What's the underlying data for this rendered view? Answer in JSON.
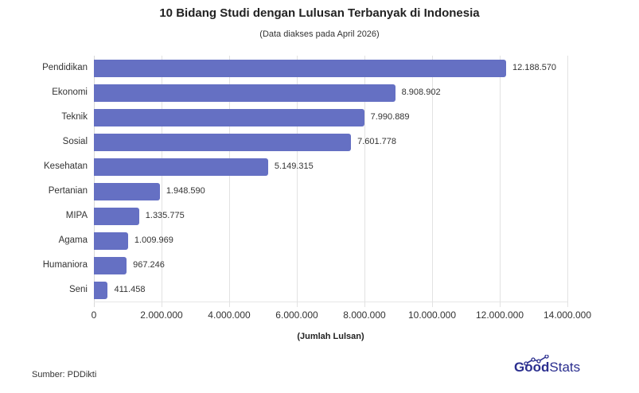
{
  "header": {
    "title": "10 Bidang Studi dengan Lulusan Terbanyak di Indonesia",
    "subtitle": "(Data diakses pada April 2026)"
  },
  "footer": {
    "source": "Sumber: PDDikti",
    "logo_bold": "Good",
    "logo_light": "Stats"
  },
  "colors": {
    "bar": "#6570c3",
    "logo": "#2b2f8f"
  },
  "chart_data": {
    "type": "bar",
    "orientation": "horizontal",
    "title": "10 Bidang Studi dengan Lulusan Terbanyak di Indonesia",
    "subtitle": "(Data diakses pada April 2026)",
    "xlabel": "(Jumlah Lulsan)",
    "ylabel": "",
    "xlim": [
      0,
      14000000
    ],
    "grid": true,
    "legend": "none",
    "categories": [
      "Pendidikan",
      "Ekonomi",
      "Teknik",
      "Sosial",
      "Kesehatan",
      "Pertanian",
      "MIPA",
      "Agama",
      "Humaniora",
      "Seni"
    ],
    "values": [
      12188570,
      8908902,
      7990889,
      7601778,
      5149315,
      1948590,
      1335775,
      1009969,
      967246,
      411458
    ],
    "value_labels": [
      "12.188.570",
      "8.908.902",
      "7.990.889",
      "7.601.778",
      "5.149.315",
      "1.948.590",
      "1.335.775",
      "1.009.969",
      "967.246",
      "411.458"
    ],
    "ticks": [
      "0",
      "2.000.000",
      "4.000.000",
      "6.000.000",
      "8.000.000",
      "10.000.000",
      "12.000.000",
      "14.000.000"
    ],
    "tick_values": [
      0,
      2000000,
      4000000,
      6000000,
      8000000,
      10000000,
      12000000,
      14000000
    ]
  }
}
